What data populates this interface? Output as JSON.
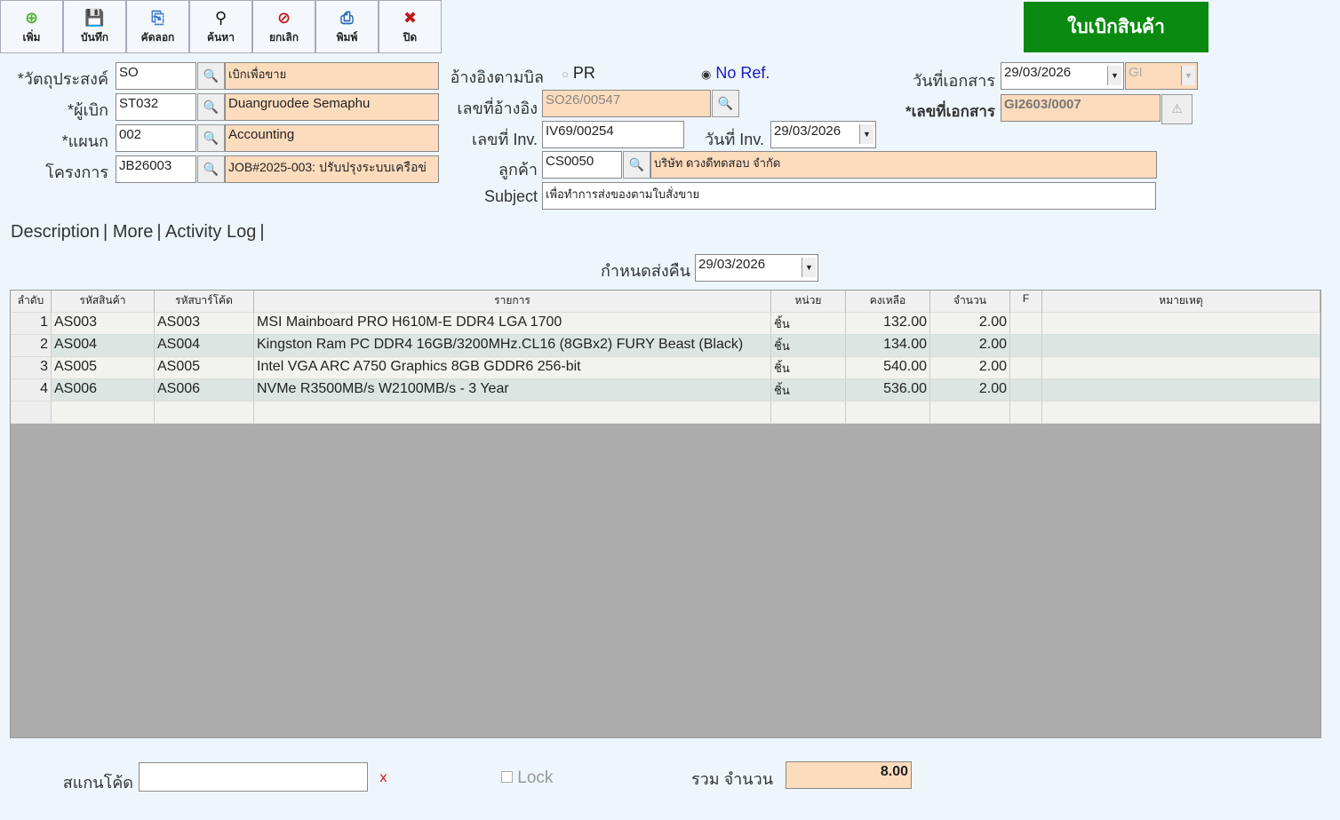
{
  "toolbar": [
    {
      "label": "เพิ่ม",
      "icon": "add-icon",
      "glyph": "⊕",
      "color": "#4caf28"
    },
    {
      "label": "บันทึก",
      "icon": "save-icon",
      "glyph": "💾",
      "color": "#666"
    },
    {
      "label": "คัดลอก",
      "icon": "copy-icon",
      "glyph": "⎘",
      "color": "#3a7ac8"
    },
    {
      "label": "ค้นหา",
      "icon": "binoculars-icon",
      "glyph": "⚲",
      "color": "#111"
    },
    {
      "label": "ยกเลิก",
      "icon": "cancel-icon",
      "glyph": "⊘",
      "color": "#c01818"
    },
    {
      "label": "พิมพ์",
      "icon": "print-icon",
      "glyph": "⎙",
      "color": "#2a6ab8"
    },
    {
      "label": "ปิด",
      "icon": "close-icon",
      "glyph": "✖",
      "color": "#c01818"
    }
  ],
  "title": {
    "text": "ใบเบิกสินค้า",
    "bg": "#0a8a10"
  },
  "form": {
    "purpose_label": "*วัตถุประสงค์",
    "purpose_code": "SO",
    "purpose_name": "เบิกเพื่อขาย",
    "requester_label": "*ผู้เบิก",
    "requester_code": "ST032",
    "requester_name": "Duangruodee Semaphu",
    "dept_label": "*แผนก",
    "dept_code": "002",
    "dept_name": "Accounting",
    "project_label": "โครงการ",
    "project_code": "JB26003",
    "project_name": "JOB#2025-003: ปรับปรุงระบบเครือข่",
    "ref_label": "อ้างอิงตามบิล",
    "ref_pr": "PR",
    "ref_noref": "No Ref.",
    "refno_label": "เลขที่อ้างอิง",
    "refno": "SO26/00547",
    "inv_label": "เลขที่ Inv.",
    "inv": "IV69/00254",
    "invdate_label": "วันที่ Inv.",
    "invdate": "29/03/2026",
    "customer_label": "ลูกค้า",
    "customer_code": "CS0050",
    "customer_name": "บริษัท ดวงดีทดสอบ จำกัด",
    "subject_label": "Subject",
    "subject": "เพื่อทำการส่งของตามใบสั่งขาย",
    "docdate_label": "วันที่เอกสาร",
    "docdate": "29/03/2026",
    "doctype": "GI",
    "docno_label": "*เลขที่เอกสาร",
    "docno": "GI2603/0007"
  },
  "tabs": [
    "Description",
    "More",
    "Activity Log"
  ],
  "return_label": "กำหนดส่งคืน",
  "return_date": "29/03/2026",
  "table": {
    "headers": [
      "ลำดับ",
      "รหัสสินค้า",
      "รหัสบาร์โค้ด",
      "รายการ",
      "หน่วย",
      "คงเหลือ",
      "จำนวน",
      "F",
      "หมายเหตุ"
    ],
    "rows": [
      [
        "1",
        "AS003",
        "AS003",
        "MSI Mainboard PRO H610M-E DDR4 LGA 1700",
        "ชิ้น",
        "132.00",
        "2.00",
        "",
        ""
      ],
      [
        "2",
        "AS004",
        "AS004",
        "Kingston Ram PC DDR4 16GB/3200MHz.CL16 (8GBx2) FURY Beast (Black)",
        "ชิ้น",
        "134.00",
        "2.00",
        "",
        ""
      ],
      [
        "3",
        "AS005",
        "AS005",
        "Intel VGA ARC A750 Graphics 8GB GDDR6 256-bit",
        "ชิ้น",
        "540.00",
        "2.00",
        "",
        ""
      ],
      [
        "4",
        "AS006",
        "AS006",
        "NVMe R3500MB/s W2100MB/s - 3 Year",
        "ชิ้น",
        "536.00",
        "2.00",
        "",
        ""
      ]
    ]
  },
  "footer": {
    "scan_label": "สแกนโค้ด",
    "scan_value": "",
    "clear": "x",
    "lock": "Lock",
    "total_label": "รวม จำนวน",
    "total": "8.00"
  }
}
